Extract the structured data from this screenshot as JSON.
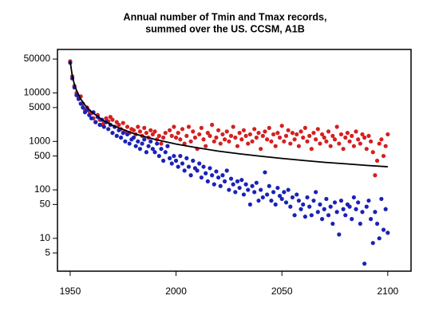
{
  "chart_data": {
    "type": "scatter",
    "title": [
      "Annual number of Tmin and Tmax records,",
      "summed over the US. CCSM, A1B"
    ],
    "log_y": true,
    "xlim": [
      1944,
      2111
    ],
    "xticks": [
      1950,
      2000,
      2050,
      2100
    ],
    "ylim": [
      2.1,
      79000
    ],
    "yticks": [
      5,
      10,
      50,
      100,
      500,
      1000,
      5000,
      10000,
      50000
    ],
    "x": [
      1950,
      1951,
      1952,
      1953,
      1954,
      1955,
      1956,
      1957,
      1958,
      1959,
      1960,
      1961,
      1962,
      1963,
      1964,
      1965,
      1966,
      1967,
      1968,
      1969,
      1970,
      1971,
      1972,
      1973,
      1974,
      1975,
      1976,
      1977,
      1978,
      1979,
      1980,
      1981,
      1982,
      1983,
      1984,
      1985,
      1986,
      1987,
      1988,
      1989,
      1990,
      1991,
      1992,
      1993,
      1994,
      1995,
      1996,
      1997,
      1998,
      1999,
      2000,
      2001,
      2002,
      2003,
      2004,
      2005,
      2006,
      2007,
      2008,
      2009,
      2010,
      2011,
      2012,
      2013,
      2014,
      2015,
      2016,
      2017,
      2018,
      2019,
      2020,
      2021,
      2022,
      2023,
      2024,
      2025,
      2026,
      2027,
      2028,
      2029,
      2030,
      2031,
      2032,
      2033,
      2034,
      2035,
      2036,
      2037,
      2038,
      2039,
      2040,
      2041,
      2042,
      2043,
      2044,
      2045,
      2046,
      2047,
      2048,
      2049,
      2050,
      2051,
      2052,
      2053,
      2054,
      2055,
      2056,
      2057,
      2058,
      2059,
      2060,
      2061,
      2062,
      2063,
      2064,
      2065,
      2066,
      2067,
      2068,
      2069,
      2070,
      2071,
      2072,
      2073,
      2074,
      2075,
      2076,
      2077,
      2078,
      2079,
      2080,
      2081,
      2082,
      2083,
      2084,
      2085,
      2086,
      2087,
      2088,
      2089,
      2090,
      2091,
      2092,
      2093,
      2094,
      2095,
      2096,
      2097,
      2098,
      2099,
      2100
    ],
    "series": [
      {
        "color": "#d42020",
        "values": [
          45000,
          22000,
          14000,
          10000,
          8000,
          8500,
          6000,
          4500,
          5000,
          4200,
          3800,
          3000,
          2500,
          3500,
          2800,
          2200,
          2400,
          3000,
          2600,
          3200,
          2800,
          2000,
          2500,
          2200,
          1800,
          2400,
          1600,
          2000,
          1500,
          1800,
          1700,
          1400,
          2000,
          1600,
          1300,
          1900,
          1500,
          1200,
          1700,
          1400,
          1600,
          1100,
          1300,
          900,
          1200,
          1500,
          800,
          1700,
          1300,
          2000,
          1200,
          1500,
          1100,
          1800,
          900,
          1300,
          2000,
          1000,
          1600,
          1200,
          700,
          1400,
          1900,
          1100,
          800,
          1500,
          1300,
          2200,
          1000,
          1200,
          1700,
          900,
          1400,
          1100,
          1600,
          1000,
          1300,
          2000,
          1200,
          800,
          1500,
          1100,
          1700,
          1300,
          900,
          1400,
          1000,
          1800,
          1200,
          1500,
          700,
          1300,
          1600,
          1100,
          1900,
          1000,
          1400,
          800,
          1500,
          1200,
          2100,
          1000,
          1300,
          1700,
          900,
          1500,
          1100,
          1400,
          800,
          1600,
          1200,
          1900,
          1000,
          1300,
          700,
          1500,
          1100,
          1800,
          900,
          1400,
          1200,
          1000,
          1600,
          800,
          1300,
          1100,
          2000,
          900,
          1400,
          700,
          1200,
          1500,
          1000,
          1300,
          800,
          1600,
          1100,
          900,
          1400,
          1200,
          700,
          1300,
          1000,
          600,
          200,
          400,
          900,
          1100,
          500,
          800,
          1400
        ]
      },
      {
        "color": "#1a22b8",
        "values": [
          42000,
          20000,
          13000,
          9000,
          7500,
          6000,
          5000,
          4000,
          4500,
          3500,
          3000,
          4000,
          2500,
          3200,
          2200,
          2800,
          2000,
          2500,
          1800,
          2200,
          1500,
          2000,
          1300,
          1700,
          1200,
          1500,
          1000,
          1400,
          900,
          1100,
          1200,
          800,
          1000,
          700,
          900,
          1100,
          600,
          800,
          1000,
          700,
          600,
          900,
          500,
          700,
          400,
          600,
          800,
          450,
          350,
          500,
          400,
          300,
          500,
          350,
          250,
          450,
          300,
          200,
          400,
          280,
          250,
          350,
          180,
          300,
          220,
          150,
          280,
          200,
          130,
          240,
          180,
          120,
          200,
          150,
          250,
          100,
          170,
          130,
          90,
          150,
          110,
          160,
          80,
          130,
          100,
          50,
          120,
          90,
          140,
          60,
          100,
          70,
          230,
          80,
          120,
          60,
          90,
          50,
          110,
          75,
          65,
          90,
          55,
          100,
          45,
          70,
          30,
          80,
          60,
          40,
          50,
          28,
          70,
          45,
          30,
          60,
          90,
          35,
          50,
          25,
          40,
          65,
          30,
          45,
          20,
          55,
          35,
          12,
          60,
          40,
          30,
          50,
          45,
          25,
          70,
          40,
          55,
          20,
          35,
          3,
          45,
          60,
          25,
          8,
          35,
          20,
          10,
          65,
          15,
          40,
          13
        ]
      },
      {
        "type": "line",
        "color": "#000000",
        "x": [
          1950,
          1951,
          1952,
          1953,
          1955,
          1957,
          1960,
          1965,
          1970,
          1980,
          1990,
          2000,
          2010,
          2020,
          2030,
          2040,
          2050,
          2060,
          2070,
          2080,
          2090,
          2100
        ],
        "values": [
          45000,
          22500,
          15000,
          11250,
          7500,
          5625,
          4090,
          2810,
          2140,
          1450,
          1100,
          880,
          740,
          630,
          555,
          495,
          445,
          405,
          370,
          345,
          320,
          300
        ]
      }
    ]
  }
}
